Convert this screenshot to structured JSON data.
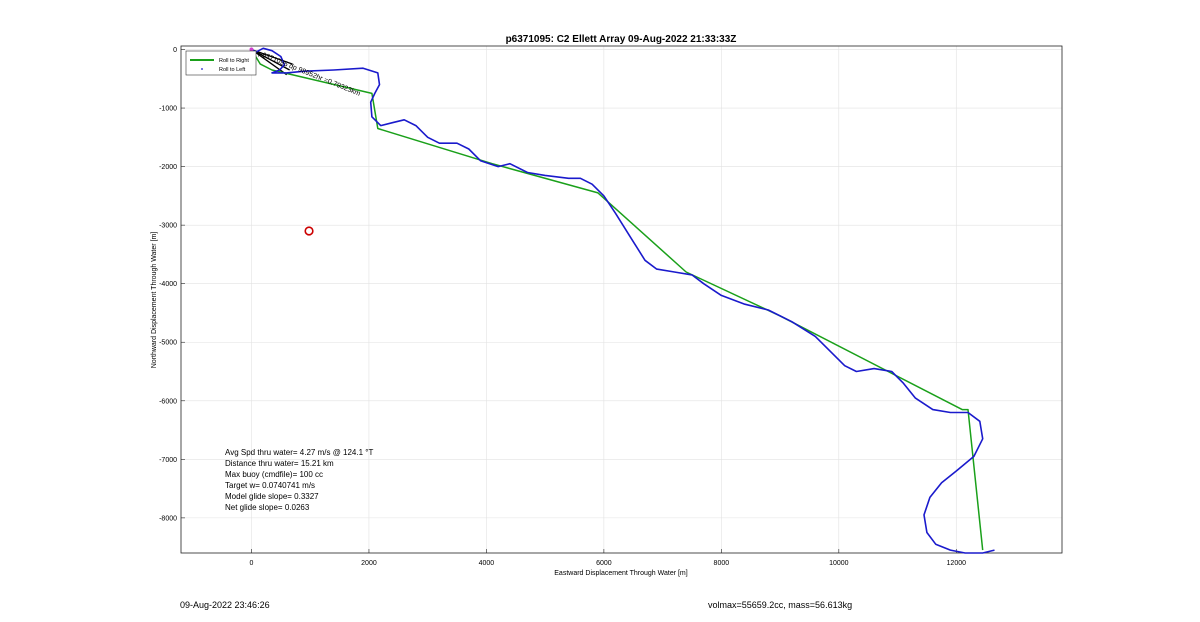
{
  "chart_data": {
    "type": "line",
    "title": "p6371095: C2 Ellett Array 09-Aug-2022 21:33:33Z",
    "xlabel": "Eastward Displacement Through Water [m]",
    "ylabel": "Northward Displacement Through Water [m]",
    "xlim": [
      -1200,
      13800
    ],
    "ylim": [
      -8600,
      60
    ],
    "xticks": [
      0,
      2000,
      4000,
      6000,
      8000,
      10000,
      12000
    ],
    "yticks": [
      0,
      -1000,
      -2000,
      -3000,
      -4000,
      -5000,
      -6000,
      -7000,
      -8000
    ],
    "grid": true,
    "legend": {
      "position": "top-left",
      "entries": [
        {
          "label": "Roll to Right",
          "color": "#1aa01a",
          "style": "line"
        },
        {
          "label": "Roll to Left",
          "color": "#1a1acc",
          "style": "dot"
        }
      ]
    },
    "series": [
      {
        "name": "Roll to Right",
        "color": "#1aa01a",
        "points": [
          [
            0,
            0
          ],
          [
            150,
            -250
          ],
          [
            350,
            -350
          ],
          [
            2050,
            -750
          ],
          [
            2150,
            -1350
          ],
          [
            4100,
            -1950
          ],
          [
            5900,
            -2450
          ],
          [
            7400,
            -3800
          ],
          [
            9000,
            -4550
          ],
          [
            12100,
            -6150
          ],
          [
            12200,
            -6150
          ],
          [
            12450,
            -8550
          ]
        ]
      },
      {
        "name": "Roll to Left",
        "color": "#1a1acc",
        "points": [
          [
            0,
            0
          ],
          [
            80,
            -40
          ],
          [
            200,
            20
          ],
          [
            350,
            -20
          ],
          [
            500,
            -120
          ],
          [
            560,
            -260
          ],
          [
            480,
            -350
          ],
          [
            350,
            -400
          ],
          [
            600,
            -400
          ],
          [
            900,
            -370
          ],
          [
            1400,
            -350
          ],
          [
            1900,
            -320
          ],
          [
            2150,
            -400
          ],
          [
            2180,
            -600
          ],
          [
            2100,
            -750
          ],
          [
            2030,
            -900
          ],
          [
            2050,
            -1150
          ],
          [
            2200,
            -1300
          ],
          [
            2400,
            -1250
          ],
          [
            2600,
            -1200
          ],
          [
            2800,
            -1300
          ],
          [
            3000,
            -1500
          ],
          [
            3200,
            -1600
          ],
          [
            3500,
            -1600
          ],
          [
            3700,
            -1700
          ],
          [
            3900,
            -1900
          ],
          [
            4200,
            -2000
          ],
          [
            4400,
            -1950
          ],
          [
            4700,
            -2100
          ],
          [
            5000,
            -2150
          ],
          [
            5400,
            -2200
          ],
          [
            5600,
            -2200
          ],
          [
            5800,
            -2300
          ],
          [
            6000,
            -2500
          ],
          [
            6200,
            -2800
          ],
          [
            6450,
            -3200
          ],
          [
            6700,
            -3600
          ],
          [
            6900,
            -3750
          ],
          [
            7200,
            -3800
          ],
          [
            7500,
            -3850
          ],
          [
            7700,
            -4000
          ],
          [
            8000,
            -4200
          ],
          [
            8400,
            -4350
          ],
          [
            8800,
            -4450
          ],
          [
            9200,
            -4650
          ],
          [
            9600,
            -4900
          ],
          [
            9900,
            -5200
          ],
          [
            10100,
            -5400
          ],
          [
            10300,
            -5500
          ],
          [
            10600,
            -5450
          ],
          [
            10900,
            -5500
          ],
          [
            11100,
            -5700
          ],
          [
            11300,
            -5950
          ],
          [
            11600,
            -6150
          ],
          [
            11900,
            -6200
          ],
          [
            12200,
            -6200
          ],
          [
            12400,
            -6350
          ],
          [
            12450,
            -6650
          ],
          [
            12300,
            -6950
          ],
          [
            12000,
            -7200
          ],
          [
            11750,
            -7400
          ],
          [
            11550,
            -7650
          ],
          [
            11450,
            -7950
          ],
          [
            11500,
            -8250
          ],
          [
            11650,
            -8450
          ],
          [
            11900,
            -8550
          ],
          [
            12150,
            -8600
          ],
          [
            12450,
            -8600
          ],
          [
            12650,
            -8550
          ]
        ]
      }
    ],
    "target_marker": {
      "x": 980,
      "y": -3100,
      "color": "#cc0000"
    },
    "leg_vectors": [
      {
        "x1": 0,
        "y1": 0,
        "x2": 700,
        "y2": -250
      },
      {
        "x1": 0,
        "y1": 0,
        "x2": 650,
        "y2": -350
      },
      {
        "x1": 0,
        "y1": 0,
        "x2": 600,
        "y2": -430
      }
    ],
    "track_annotation": "p6371095 dp 98952hr =0.79323km",
    "stats": [
      "Avg Spd thru water=  4.27 m/s @ 124.1 °T",
      "Distance thru water= 15.21 km",
      "Max buoy (cmdfile)= 100 cc",
      "Target w= 0.0740741 m/s",
      "Model glide slope= 0.3327",
      "Net glide slope= 0.0263"
    ]
  },
  "footer": {
    "timestamp": "09-Aug-2022 23:46:26",
    "vol_mass": "volmax=55659.2cc, mass=56.613kg"
  }
}
